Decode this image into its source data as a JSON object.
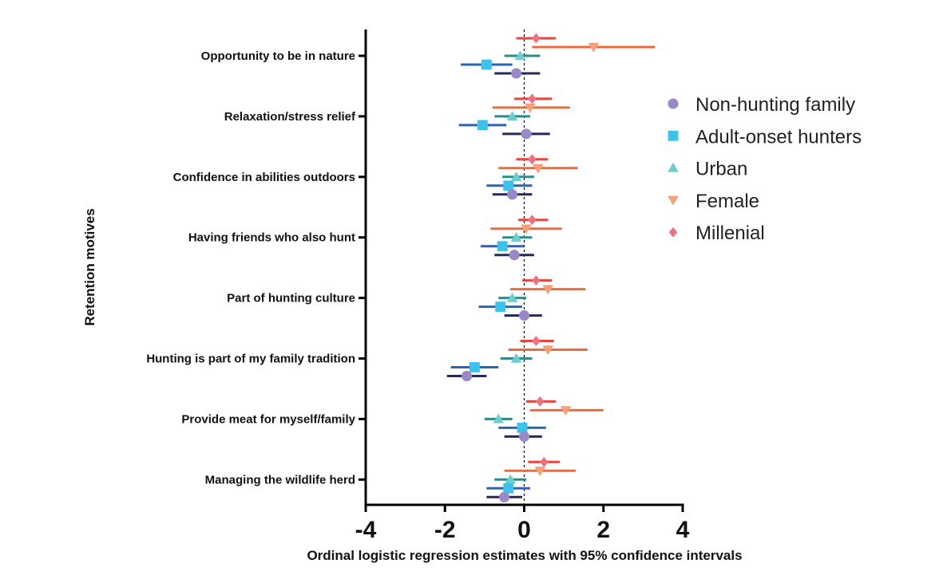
{
  "chart_data": {
    "type": "scatter",
    "subtype": "forest-plot",
    "xlabel": "Ordinal logistic regression estimates with 95% confidence intervals",
    "ylabel": "Retention motives",
    "xlim": [
      -4,
      4
    ],
    "xticks": [
      "-4",
      "-2",
      "0",
      "2",
      "4"
    ],
    "reference_line": {
      "x": 0,
      "style": "dashed"
    },
    "grid": false,
    "legend_position": "right",
    "categories": [
      "Opportunity to be in nature",
      "Relaxation/stress relief",
      "Confidence in abilities outdoors",
      "Having friends who also hunt",
      "Part of hunting culture",
      "Hunting is part of my family tradition",
      "Provide meat for myself/family",
      "Managing the wildlife herd"
    ],
    "series": [
      {
        "name": "Millenial",
        "marker": "diamond",
        "color": "#f07080",
        "bar_color": "#e8453c",
        "points": [
          {
            "est": 0.3,
            "lo": -0.2,
            "hi": 0.8
          },
          {
            "est": 0.2,
            "lo": -0.25,
            "hi": 0.7
          },
          {
            "est": 0.2,
            "lo": -0.2,
            "hi": 0.6
          },
          {
            "est": 0.2,
            "lo": -0.15,
            "hi": 0.6
          },
          {
            "est": 0.3,
            "lo": -0.05,
            "hi": 0.7
          },
          {
            "est": 0.3,
            "lo": -0.1,
            "hi": 0.75
          },
          {
            "est": 0.4,
            "lo": 0.05,
            "hi": 0.8
          },
          {
            "est": 0.5,
            "lo": 0.1,
            "hi": 0.9
          }
        ]
      },
      {
        "name": "Female",
        "marker": "triangle-down",
        "color": "#f6a07a",
        "bar_color": "#f06a3c",
        "points": [
          {
            "est": 1.75,
            "lo": 0.2,
            "hi": 3.3
          },
          {
            "est": 0.15,
            "lo": -0.8,
            "hi": 1.15
          },
          {
            "est": 0.35,
            "lo": -0.65,
            "hi": 1.35
          },
          {
            "est": 0.05,
            "lo": -0.85,
            "hi": 0.95
          },
          {
            "est": 0.6,
            "lo": -0.35,
            "hi": 1.55
          },
          {
            "est": 0.6,
            "lo": -0.4,
            "hi": 1.6
          },
          {
            "est": 1.05,
            "lo": 0.15,
            "hi": 2.0
          },
          {
            "est": 0.4,
            "lo": -0.5,
            "hi": 1.3
          }
        ]
      },
      {
        "name": "Urban",
        "marker": "triangle-up",
        "color": "#6ccfcf",
        "bar_color": "#2f8a8a",
        "points": [
          {
            "est": -0.1,
            "lo": -0.5,
            "hi": 0.4
          },
          {
            "est": -0.3,
            "lo": -0.75,
            "hi": 0.15
          },
          {
            "est": -0.2,
            "lo": -0.55,
            "hi": 0.25
          },
          {
            "est": -0.2,
            "lo": -0.55,
            "hi": 0.2
          },
          {
            "est": -0.3,
            "lo": -0.65,
            "hi": 0.05
          },
          {
            "est": -0.2,
            "lo": -0.6,
            "hi": 0.2
          },
          {
            "est": -0.65,
            "lo": -1.0,
            "hi": -0.3
          },
          {
            "est": -0.35,
            "lo": -0.75,
            "hi": 0.05
          }
        ]
      },
      {
        "name": "Adult-onset hunters",
        "marker": "square",
        "color": "#3cc3ec",
        "bar_color": "#2a64b8",
        "points": [
          {
            "est": -0.95,
            "lo": -1.6,
            "hi": -0.3
          },
          {
            "est": -1.05,
            "lo": -1.65,
            "hi": -0.45
          },
          {
            "est": -0.4,
            "lo": -0.95,
            "hi": 0.2
          },
          {
            "est": -0.55,
            "lo": -1.1,
            "hi": 0.0
          },
          {
            "est": -0.6,
            "lo": -1.15,
            "hi": -0.05
          },
          {
            "est": -1.25,
            "lo": -1.85,
            "hi": -0.65
          },
          {
            "est": -0.05,
            "lo": -0.65,
            "hi": 0.55
          },
          {
            "est": -0.4,
            "lo": -0.95,
            "hi": 0.15
          }
        ]
      },
      {
        "name": "Non-hunting family",
        "marker": "circle",
        "color": "#9b88c8",
        "bar_color": "#262952",
        "points": [
          {
            "est": -0.2,
            "lo": -0.75,
            "hi": 0.4
          },
          {
            "est": 0.05,
            "lo": -0.55,
            "hi": 0.65
          },
          {
            "est": -0.3,
            "lo": -0.8,
            "hi": 0.2
          },
          {
            "est": -0.25,
            "lo": -0.75,
            "hi": 0.25
          },
          {
            "est": 0.0,
            "lo": -0.5,
            "hi": 0.45
          },
          {
            "est": -1.45,
            "lo": -1.95,
            "hi": -0.95
          },
          {
            "est": 0.0,
            "lo": -0.5,
            "hi": 0.45
          },
          {
            "est": -0.5,
            "lo": -0.95,
            "hi": -0.05
          }
        ]
      }
    ],
    "legend_order": [
      "Non-hunting family",
      "Adult-onset hunters",
      "Urban",
      "Female",
      "Millenial"
    ]
  }
}
